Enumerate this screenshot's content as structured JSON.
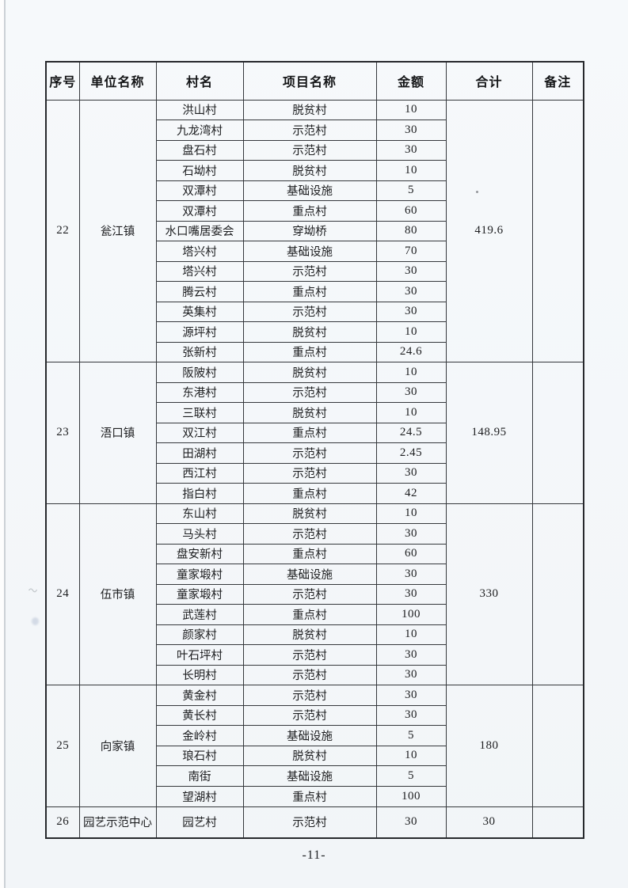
{
  "page": {
    "page_number": "-11-",
    "background_color": "#f4f7fa",
    "border_color": "#26282c",
    "text_color": "#1d1e20"
  },
  "table": {
    "columns": [
      "序号",
      "单位名称",
      "村名",
      "项目名称",
      "金额",
      "合计",
      "备注"
    ],
    "sections": [
      {
        "no": "22",
        "unit": "瓮江镇",
        "total": "419.6",
        "remark": "",
        "rows": [
          {
            "village": "洪山村",
            "project": "脱贫村",
            "amount": "10"
          },
          {
            "village": "九龙湾村",
            "project": "示范村",
            "amount": "30"
          },
          {
            "village": "盘石村",
            "project": "示范村",
            "amount": "30"
          },
          {
            "village": "石坳村",
            "project": "脱贫村",
            "amount": "10"
          },
          {
            "village": "双潭村",
            "project": "基础设施",
            "amount": "5"
          },
          {
            "village": "双潭村",
            "project": "重点村",
            "amount": "60"
          },
          {
            "village": "水口嘴居委会",
            "project": "穿坳桥",
            "amount": "80"
          },
          {
            "village": "塔兴村",
            "project": "基础设施",
            "amount": "70"
          },
          {
            "village": "塔兴村",
            "project": "示范村",
            "amount": "30"
          },
          {
            "village": "腾云村",
            "project": "重点村",
            "amount": "30"
          },
          {
            "village": "英集村",
            "project": "示范村",
            "amount": "30"
          },
          {
            "village": "源坪村",
            "project": "脱贫村",
            "amount": "10"
          },
          {
            "village": "张新村",
            "project": "重点村",
            "amount": "24.6"
          }
        ]
      },
      {
        "no": "23",
        "unit": "浯口镇",
        "total": "148.95",
        "remark": "",
        "rows": [
          {
            "village": "阪陂村",
            "project": "脱贫村",
            "amount": "10"
          },
          {
            "village": "东港村",
            "project": "示范村",
            "amount": "30"
          },
          {
            "village": "三联村",
            "project": "脱贫村",
            "amount": "10"
          },
          {
            "village": "双江村",
            "project": "重点村",
            "amount": "24.5"
          },
          {
            "village": "田湖村",
            "project": "示范村",
            "amount": "2.45"
          },
          {
            "village": "西江村",
            "project": "示范村",
            "amount": "30"
          },
          {
            "village": "指白村",
            "project": "重点村",
            "amount": "42"
          }
        ]
      },
      {
        "no": "24",
        "unit": "伍市镇",
        "total": "330",
        "remark": "",
        "rows": [
          {
            "village": "东山村",
            "project": "脱贫村",
            "amount": "10"
          },
          {
            "village": "马头村",
            "project": "示范村",
            "amount": "30"
          },
          {
            "village": "盘安新村",
            "project": "重点村",
            "amount": "60"
          },
          {
            "village": "童家塅村",
            "project": "基础设施",
            "amount": "30"
          },
          {
            "village": "童家塅村",
            "project": "示范村",
            "amount": "30"
          },
          {
            "village": "武莲村",
            "project": "重点村",
            "amount": "100"
          },
          {
            "village": "颜家村",
            "project": "脱贫村",
            "amount": "10"
          },
          {
            "village": "叶石坪村",
            "project": "示范村",
            "amount": "30"
          },
          {
            "village": "长明村",
            "project": "示范村",
            "amount": "30"
          }
        ]
      },
      {
        "no": "25",
        "unit": "向家镇",
        "total": "180",
        "remark": "",
        "rows": [
          {
            "village": "黄金村",
            "project": "示范村",
            "amount": "30"
          },
          {
            "village": "黄长村",
            "project": "示范村",
            "amount": "30"
          },
          {
            "village": "金岭村",
            "project": "基础设施",
            "amount": "5"
          },
          {
            "village": "琅石村",
            "project": "脱贫村",
            "amount": "10"
          },
          {
            "village": "南街",
            "project": "基础设施",
            "amount": "5"
          },
          {
            "village": "望湖村",
            "project": "重点村",
            "amount": "100"
          }
        ]
      },
      {
        "no": "26",
        "unit": "园艺示范中心",
        "total": "30",
        "remark": "",
        "rows": [
          {
            "village": "园艺村",
            "project": "示范村",
            "amount": "30"
          }
        ]
      }
    ]
  }
}
